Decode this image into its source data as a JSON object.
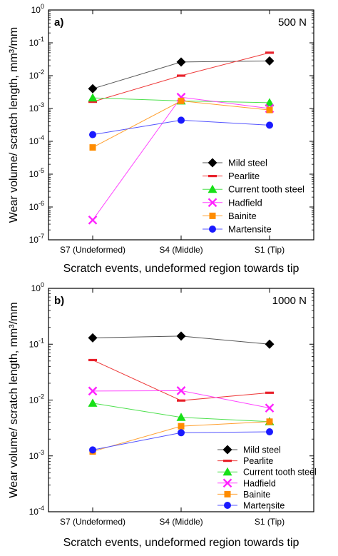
{
  "chart_data": [
    {
      "type": "line",
      "panel_label": "a)",
      "annotation": "500 N",
      "xlabel": "Scratch events, undeformed region towards tip",
      "ylabel": "Wear volume/ scratch length, mm³/mm",
      "categories": [
        "S7 (Undeformed)",
        "S4 (Middle)",
        "S1 (Tip)"
      ],
      "y_scale": "log",
      "ylim": [
        1e-07,
        1
      ],
      "y_tick_labels": [
        {
          "base": "10",
          "exp": "0",
          "value": 1
        },
        {
          "base": "10",
          "exp": "-1",
          "value": 0.1
        },
        {
          "base": "10",
          "exp": "-2",
          "value": 0.01
        },
        {
          "base": "10",
          "exp": "-3",
          "value": 0.001
        },
        {
          "base": "10",
          "exp": "-4",
          "value": 0.0001
        },
        {
          "base": "10",
          "exp": "-5",
          "value": 1e-05
        },
        {
          "base": "10",
          "exp": "-6",
          "value": 1e-06
        },
        {
          "base": "10",
          "exp": "-7",
          "value": 1e-07
        }
      ],
      "legend_position": "bottom-right",
      "series": [
        {
          "name": "Mild steel",
          "values": [
            0.004,
            0.026,
            0.028
          ],
          "color": "#000000",
          "line_color": "#555555",
          "marker": "diamond"
        },
        {
          "name": "Pearlite",
          "values": [
            0.0016,
            0.01,
            0.05
          ],
          "color": "#e8212b",
          "line_color": "#ee3a3a",
          "marker": "dash"
        },
        {
          "name": "Current tooth steel",
          "values": [
            0.0021,
            0.0017,
            0.0015
          ],
          "color": "#18e018",
          "line_color": "#4fe04f",
          "marker": "triangle"
        },
        {
          "name": "Hadfield",
          "values": [
            4e-07,
            0.0022,
            0.001
          ],
          "color": "#ff22ff",
          "line_color": "#ff44ff",
          "marker": "x"
        },
        {
          "name": "Bainite",
          "values": [
            6.5e-05,
            0.0017,
            0.0009
          ],
          "color": "#ff8c00",
          "line_color": "#ffa030",
          "marker": "square"
        },
        {
          "name": "Martensite",
          "values": [
            0.00016,
            0.00044,
            0.00031
          ],
          "color": "#1a1aff",
          "line_color": "#5555ff",
          "marker": "circle"
        }
      ]
    },
    {
      "type": "line",
      "panel_label": "b)",
      "annotation": "1000 N",
      "xlabel": "Scratch events, undeformed region towards tip",
      "ylabel": "Wear volume/ scratch length, mm³/mm",
      "categories": [
        "S7 (Undeformed)",
        "S4 (Middle)",
        "S1 (Tip)"
      ],
      "y_scale": "log",
      "ylim": [
        0.0001,
        1
      ],
      "y_tick_labels": [
        {
          "base": "10",
          "exp": "0",
          "value": 1
        },
        {
          "base": "10",
          "exp": "-1",
          "value": 0.1
        },
        {
          "base": "10",
          "exp": "-2",
          "value": 0.01
        },
        {
          "base": "10",
          "exp": "-3",
          "value": 0.001
        },
        {
          "base": "10",
          "exp": "-4",
          "value": 0.0001
        }
      ],
      "legend_position": "bottom-right",
      "series": [
        {
          "name": "Mild steel",
          "values": [
            0.13,
            0.14,
            0.1
          ],
          "color": "#000000",
          "line_color": "#555555",
          "marker": "diamond"
        },
        {
          "name": "Pearlite",
          "values": [
            0.052,
            0.0098,
            0.0135
          ],
          "color": "#e8212b",
          "line_color": "#ee3a3a",
          "marker": "dash"
        },
        {
          "name": "Current tooth steel",
          "values": [
            0.0088,
            0.0049,
            0.0041
          ],
          "color": "#18e018",
          "line_color": "#4fe04f",
          "marker": "triangle"
        },
        {
          "name": "Hadfield",
          "values": [
            0.0145,
            0.0147,
            0.0072
          ],
          "color": "#ff22ff",
          "line_color": "#ff44ff",
          "marker": "x"
        },
        {
          "name": "Bainite",
          "values": [
            0.0012,
            0.0034,
            0.0041
          ],
          "color": "#ff8c00",
          "line_color": "#ffa030",
          "marker": "square"
        },
        {
          "name": "Martensite",
          "values": [
            0.00128,
            0.0026,
            0.0027
          ],
          "color": "#1a1aff",
          "line_color": "#5555ff",
          "marker": "circle"
        }
      ]
    }
  ]
}
